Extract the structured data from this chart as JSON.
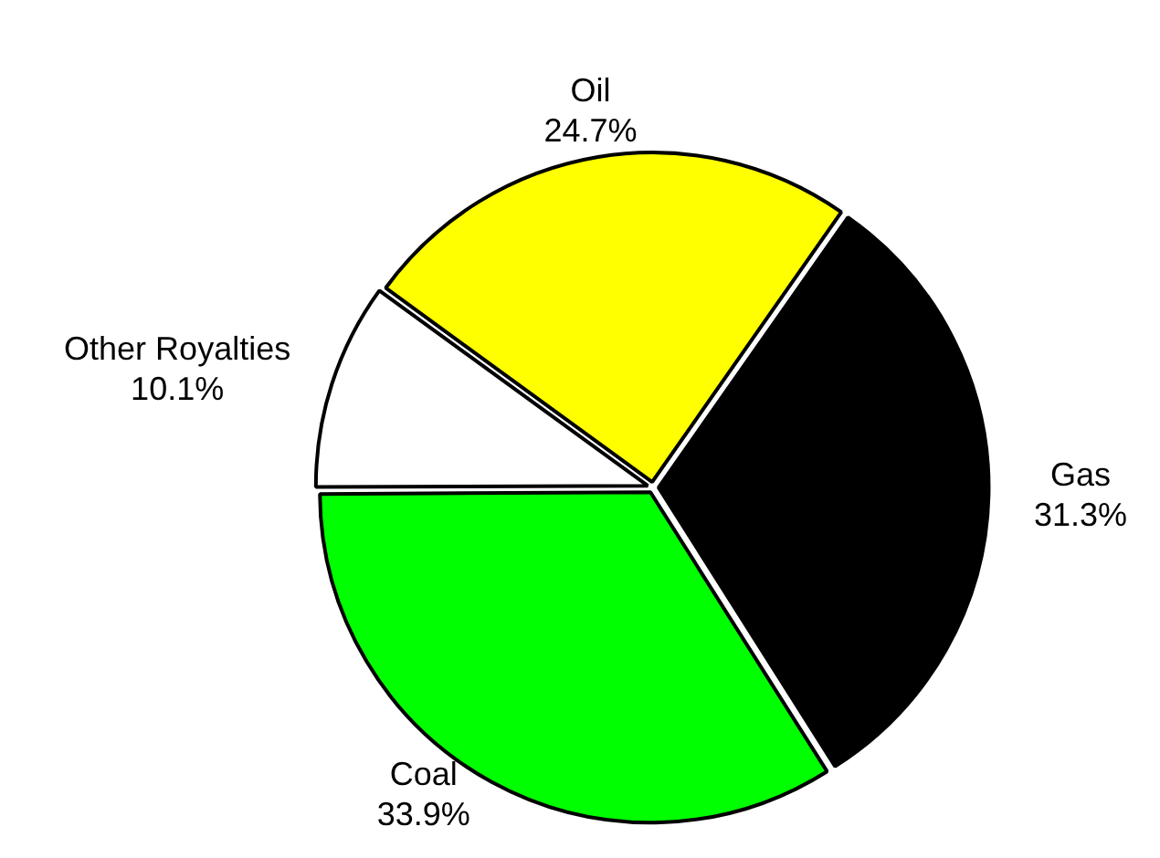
{
  "chart_data": {
    "type": "pie",
    "categories": [
      "Gas",
      "Coal",
      "Other Royalties",
      "Oil"
    ],
    "values": [
      31.3,
      33.9,
      10.1,
      24.7
    ],
    "value_labels": [
      "31.3%",
      "33.9%",
      "10.1%",
      "24.7%"
    ],
    "colors": [
      "#000000",
      "#00ff00",
      "#ffffff",
      "#ffff00"
    ]
  }
}
